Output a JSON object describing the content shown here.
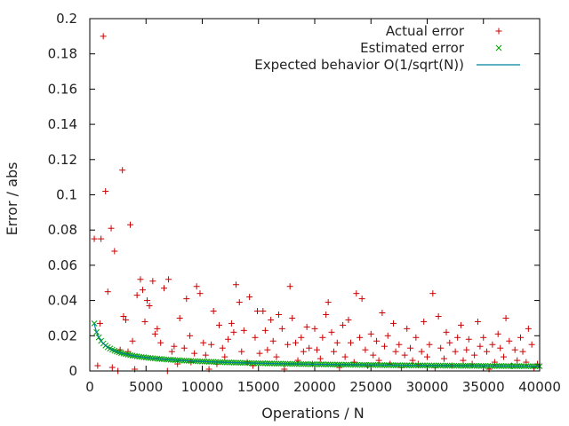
{
  "chart_data": {
    "type": "scatter",
    "xlabel": "Operations / N",
    "ylabel": "Error / abs",
    "xlim": [
      0,
      40000
    ],
    "ylim": [
      0,
      0.2
    ],
    "xticks": [
      0,
      5000,
      10000,
      15000,
      20000,
      25000,
      30000,
      35000,
      40000
    ],
    "yticks": [
      0,
      0.02,
      0.04,
      0.06,
      0.08,
      0.1,
      0.12,
      0.14,
      0.16,
      0.18,
      0.2
    ],
    "grid": false,
    "legend_position": "top-right",
    "series": [
      {
        "name": "Actual error",
        "marker": "plus",
        "color": "#cc0000",
        "points": [
          [
            400,
            0.075
          ],
          [
            700,
            0.003
          ],
          [
            900,
            0.027
          ],
          [
            1000,
            0.075
          ],
          [
            1200,
            0.19
          ],
          [
            1400,
            0.102
          ],
          [
            1600,
            0.045
          ],
          [
            1900,
            0.081
          ],
          [
            2000,
            0.002
          ],
          [
            2200,
            0.068
          ],
          [
            2500,
            0.0
          ],
          [
            2700,
            0.012
          ],
          [
            2900,
            0.114
          ],
          [
            3000,
            0.031
          ],
          [
            3200,
            0.029
          ],
          [
            3400,
            0.011
          ],
          [
            3600,
            0.083
          ],
          [
            3800,
            0.017
          ],
          [
            4000,
            0.001
          ],
          [
            4200,
            0.043
          ],
          [
            4500,
            0.052
          ],
          [
            4700,
            0.046
          ],
          [
            4900,
            0.028
          ],
          [
            5100,
            0.04
          ],
          [
            5300,
            0.037
          ],
          [
            5600,
            0.051
          ],
          [
            5800,
            0.021
          ],
          [
            6000,
            0.024
          ],
          [
            6300,
            0.016
          ],
          [
            6600,
            0.047
          ],
          [
            6900,
            0.0
          ],
          [
            7000,
            0.052
          ],
          [
            7300,
            0.011
          ],
          [
            7500,
            0.014
          ],
          [
            7800,
            0.004
          ],
          [
            8000,
            0.03
          ],
          [
            8400,
            0.013
          ],
          [
            8600,
            0.041
          ],
          [
            8900,
            0.02
          ],
          [
            9000,
            0.005
          ],
          [
            9300,
            0.01
          ],
          [
            9500,
            0.048
          ],
          [
            9800,
            0.044
          ],
          [
            10100,
            0.016
          ],
          [
            10300,
            0.009
          ],
          [
            10600,
            0.001
          ],
          [
            10800,
            0.015
          ],
          [
            11000,
            0.034
          ],
          [
            11300,
            0.004
          ],
          [
            11500,
            0.026
          ],
          [
            11800,
            0.013
          ],
          [
            12000,
            0.008
          ],
          [
            12300,
            0.018
          ],
          [
            12600,
            0.027
          ],
          [
            12800,
            0.022
          ],
          [
            13000,
            0.049
          ],
          [
            13300,
            0.039
          ],
          [
            13500,
            0.011
          ],
          [
            13700,
            0.023
          ],
          [
            14000,
            0.005
          ],
          [
            14200,
            0.042
          ],
          [
            14500,
            0.003
          ],
          [
            14700,
            0.019
          ],
          [
            14900,
            0.034
          ],
          [
            15100,
            0.01
          ],
          [
            15400,
            0.034
          ],
          [
            15600,
            0.023
          ],
          [
            15800,
            0.012
          ],
          [
            16100,
            0.029
          ],
          [
            16300,
            0.017
          ],
          [
            16600,
            0.008
          ],
          [
            16800,
            0.032
          ],
          [
            17100,
            0.024
          ],
          [
            17300,
            0.001
          ],
          [
            17600,
            0.015
          ],
          [
            17800,
            0.048
          ],
          [
            18000,
            0.03
          ],
          [
            18300,
            0.016
          ],
          [
            18500,
            0.006
          ],
          [
            18800,
            0.019
          ],
          [
            19000,
            0.011
          ],
          [
            19300,
            0.025
          ],
          [
            19500,
            0.013
          ],
          [
            19800,
            0.004
          ],
          [
            20000,
            0.024
          ],
          [
            20200,
            0.012
          ],
          [
            20500,
            0.007
          ],
          [
            20700,
            0.019
          ],
          [
            21000,
            0.032
          ],
          [
            21200,
            0.039
          ],
          [
            21500,
            0.022
          ],
          [
            21700,
            0.011
          ],
          [
            22000,
            0.016
          ],
          [
            22200,
            0.002
          ],
          [
            22500,
            0.026
          ],
          [
            22700,
            0.008
          ],
          [
            23000,
            0.029
          ],
          [
            23200,
            0.016
          ],
          [
            23500,
            0.005
          ],
          [
            23700,
            0.044
          ],
          [
            24000,
            0.019
          ],
          [
            24200,
            0.041
          ],
          [
            24500,
            0.012
          ],
          [
            24700,
            0.003
          ],
          [
            25000,
            0.021
          ],
          [
            25200,
            0.009
          ],
          [
            25500,
            0.017
          ],
          [
            25700,
            0.006
          ],
          [
            26000,
            0.033
          ],
          [
            26200,
            0.014
          ],
          [
            26500,
            0.02
          ],
          [
            26700,
            0.004
          ],
          [
            27000,
            0.027
          ],
          [
            27200,
            0.011
          ],
          [
            27500,
            0.015
          ],
          [
            27700,
            0.002
          ],
          [
            28000,
            0.009
          ],
          [
            28200,
            0.024
          ],
          [
            28500,
            0.013
          ],
          [
            28700,
            0.006
          ],
          [
            29000,
            0.019
          ],
          [
            29200,
            0.004
          ],
          [
            29500,
            0.011
          ],
          [
            29700,
            0.028
          ],
          [
            30000,
            0.008
          ],
          [
            30200,
            0.015
          ],
          [
            30500,
            0.044
          ],
          [
            30700,
            0.002
          ],
          [
            31000,
            0.031
          ],
          [
            31200,
            0.013
          ],
          [
            31500,
            0.007
          ],
          [
            31700,
            0.022
          ],
          [
            32000,
            0.016
          ],
          [
            32200,
            0.003
          ],
          [
            32500,
            0.011
          ],
          [
            32700,
            0.019
          ],
          [
            33000,
            0.026
          ],
          [
            33200,
            0.006
          ],
          [
            33500,
            0.012
          ],
          [
            33700,
            0.018
          ],
          [
            34000,
            0.004
          ],
          [
            34200,
            0.009
          ],
          [
            34500,
            0.028
          ],
          [
            34700,
            0.014
          ],
          [
            35000,
            0.019
          ],
          [
            35300,
            0.011
          ],
          [
            35500,
            0.001
          ],
          [
            35800,
            0.015
          ],
          [
            36000,
            0.005
          ],
          [
            36300,
            0.021
          ],
          [
            36500,
            0.013
          ],
          [
            36800,
            0.008
          ],
          [
            37000,
            0.03
          ],
          [
            37300,
            0.017
          ],
          [
            37500,
            0.003
          ],
          [
            37800,
            0.012
          ],
          [
            38000,
            0.006
          ],
          [
            38300,
            0.019
          ],
          [
            38500,
            0.011
          ],
          [
            38800,
            0.005
          ],
          [
            39000,
            0.024
          ],
          [
            39300,
            0.015
          ],
          [
            39500,
            0.002
          ],
          [
            39800,
            0.004
          ]
        ]
      },
      {
        "name": "Estimated error",
        "marker": "cross",
        "color": "#00a000",
        "formula": "0.0027*sqrt(40000/N)",
        "points": []
      },
      {
        "name": "Expected behavior O(1/sqrt(N))",
        "marker": "line",
        "color": "#0080a0",
        "formula": "0.0027*sqrt(40000/N)",
        "points": []
      }
    ]
  }
}
